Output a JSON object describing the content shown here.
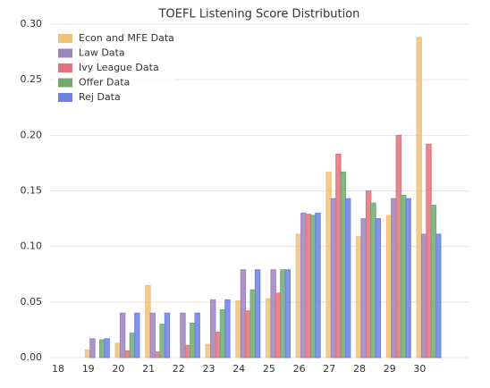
{
  "chart_data": {
    "type": "bar",
    "title": "TOEFL Listening Score Distribution",
    "categories": [
      "18",
      "19",
      "20",
      "21",
      "22",
      "23",
      "24",
      "25",
      "26",
      "27",
      "28",
      "29",
      "30"
    ],
    "series": [
      {
        "name": "Econ and MFE Data",
        "color": "#f0c27a",
        "values": [
          0,
          0.007,
          0.013,
          0.065,
          0,
          0.012,
          0.051,
          0.053,
          0.111,
          0.167,
          0.109,
          0.128,
          0.288
        ]
      },
      {
        "name": "Law Data",
        "color": "#9c84bc",
        "values": [
          0,
          0.017,
          0.04,
          0.04,
          0.04,
          0.052,
          0.079,
          0.079,
          0.13,
          0.143,
          0.125,
          0.143,
          0.111
        ]
      },
      {
        "name": "Ivy League Data",
        "color": "#e2727c",
        "values": [
          0,
          0,
          0.006,
          0.005,
          0.011,
          0.023,
          0.042,
          0.058,
          0.129,
          0.183,
          0.15,
          0.2,
          0.192
        ]
      },
      {
        "name": "Offer Data",
        "color": "#72aa72",
        "values": [
          0,
          0.016,
          0.022,
          0.03,
          0.031,
          0.043,
          0.061,
          0.079,
          0.128,
          0.167,
          0.139,
          0.146,
          0.137
        ]
      },
      {
        "name": "Rej Data",
        "color": "#6b82e2",
        "values": [
          0,
          0.017,
          0.04,
          0.04,
          0.04,
          0.052,
          0.079,
          0.079,
          0.13,
          0.143,
          0.125,
          0.143,
          0.111
        ]
      }
    ],
    "ylim": [
      0,
      0.3
    ],
    "yticks": [
      {
        "value": 0,
        "label": "0.00"
      },
      {
        "value": 0.05,
        "label": "0.05"
      },
      {
        "value": 0.1,
        "label": "0.10"
      },
      {
        "value": 0.15,
        "label": "0.15"
      },
      {
        "value": 0.2,
        "label": "0.20"
      },
      {
        "value": 0.25,
        "label": "0.25"
      },
      {
        "value": 0.3,
        "label": "0.30"
      }
    ],
    "grid": true,
    "legend": "upper left"
  }
}
